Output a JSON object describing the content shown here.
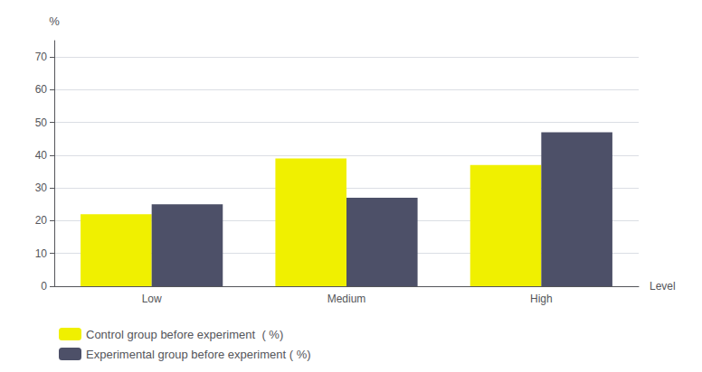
{
  "chart_data": {
    "type": "bar",
    "categories": [
      "Low",
      "Medium",
      "High"
    ],
    "series": [
      {
        "name": "Control group before experiment  ( %)",
        "color": "#f0f000",
        "values": [
          22,
          39,
          37
        ]
      },
      {
        "name": "Experimental group before experiment ( %)",
        "color": "#4d5068",
        "values": [
          25,
          27,
          47
        ]
      }
    ],
    "xlabel": "Level",
    "ylabel": "%",
    "ylim": [
      0,
      75
    ],
    "yticks": [
      0,
      10,
      20,
      30,
      40,
      50,
      60,
      70
    ],
    "grid": true,
    "legend": "lower left"
  }
}
